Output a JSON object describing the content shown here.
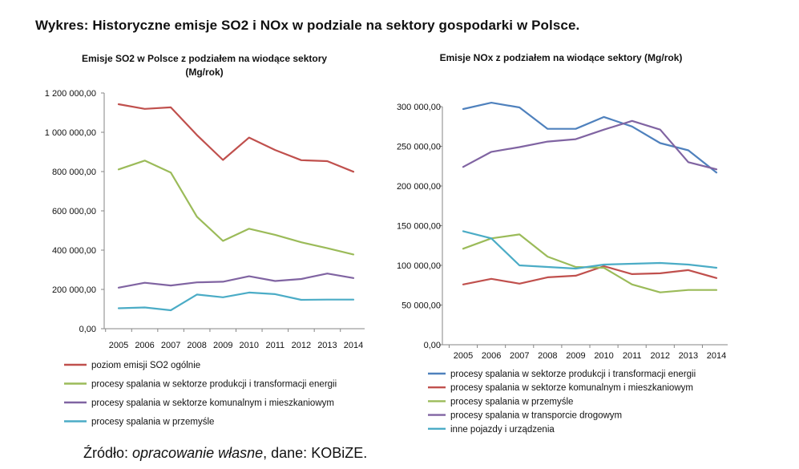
{
  "page_title": "Wykres: Historyczne emisje SO2 i NOx w podziale na sektory gospodarki w Polsce.",
  "source": {
    "prefix": "Źródło: ",
    "italic": "opracowanie własne",
    "suffix": ", dane: KOBiZE."
  },
  "chart_data": [
    {
      "id": "so2",
      "type": "line",
      "title_lines": [
        "Emisje SO2 w Polsce z podziałem na wiodące sektory",
        "(Mg/rok)"
      ],
      "categories": [
        "2005",
        "2006",
        "2007",
        "2008",
        "2009",
        "2010",
        "2011",
        "2012",
        "2013",
        "2014"
      ],
      "ylim": [
        0,
        1200000
      ],
      "yticks": [
        0,
        200000,
        400000,
        600000,
        800000,
        1000000,
        1200000
      ],
      "ytick_labels": [
        "0,00",
        "200 000,00",
        "400 000,00",
        "600 000,00",
        "800 000,00",
        "1 000 000,00",
        "1 200 000,00"
      ],
      "grid": false,
      "legend_position": "bottom",
      "series": [
        {
          "name": "poziom emisji SO2 ogólnie",
          "color": "#c0504d",
          "values": [
            1143000,
            1119000,
            1127000,
            986000,
            859000,
            973000,
            910000,
            858000,
            853000,
            799000
          ]
        },
        {
          "name": "procesy spalania w sektorze produkcji i transformacji energii",
          "color": "#9bbb59",
          "values": [
            811000,
            856000,
            795000,
            570000,
            447000,
            509000,
            478000,
            440000,
            410000,
            378000
          ]
        },
        {
          "name": "procesy spalania w sektorze komunalnym i mieszkaniowym",
          "color": "#8064a2",
          "values": [
            209000,
            234000,
            220000,
            236000,
            239000,
            267000,
            243000,
            253000,
            281000,
            258000
          ]
        },
        {
          "name": "procesy spalania w przemyśle",
          "color": "#4bacc6",
          "values": [
            104000,
            108000,
            94000,
            174000,
            160000,
            184000,
            176000,
            147000,
            148000,
            148000
          ]
        }
      ]
    },
    {
      "id": "nox",
      "type": "line",
      "title_lines": [
        "Emisje NOx z podziałem na wiodące sektory (Mg/rok)"
      ],
      "categories": [
        "2005",
        "2006",
        "2007",
        "2008",
        "2009",
        "2010",
        "2011",
        "2012",
        "2013",
        "2014"
      ],
      "ylim": [
        0,
        300000
      ],
      "yticks": [
        0,
        50000,
        100000,
        150000,
        200000,
        250000,
        300000
      ],
      "ytick_labels": [
        "0,00",
        "50 000,00",
        "100 000,00",
        "150 000,00",
        "200 000,00",
        "250 000,00",
        "300 000,00"
      ],
      "grid": false,
      "legend_position": "bottom",
      "series": [
        {
          "name": "procesy spalania w sektorze produkcji i transformacji energii",
          "color": "#4f81bd",
          "values": [
            297000,
            305000,
            299000,
            272000,
            272000,
            287000,
            275000,
            254000,
            245000,
            217000
          ]
        },
        {
          "name": "procesy spalania w sektorze komunalnym i mieszkaniowym",
          "color": "#c0504d",
          "values": [
            76000,
            83000,
            77000,
            85000,
            87000,
            99000,
            89000,
            90000,
            94000,
            84000
          ]
        },
        {
          "name": "procesy spalania w przemyśle",
          "color": "#9bbb59",
          "values": [
            121000,
            134000,
            139000,
            111000,
            98000,
            97000,
            76000,
            66000,
            69000,
            69000
          ]
        },
        {
          "name": "procesy spalania w transporcie drogowym",
          "color": "#8064a2",
          "values": [
            224000,
            243000,
            249000,
            256000,
            259000,
            271000,
            282000,
            271000,
            230000,
            221000
          ]
        },
        {
          "name": "inne pojazdy i urządzenia",
          "color": "#4bacc6",
          "values": [
            143000,
            134000,
            100000,
            98000,
            96000,
            101000,
            102000,
            103000,
            101000,
            97000
          ]
        }
      ]
    }
  ]
}
